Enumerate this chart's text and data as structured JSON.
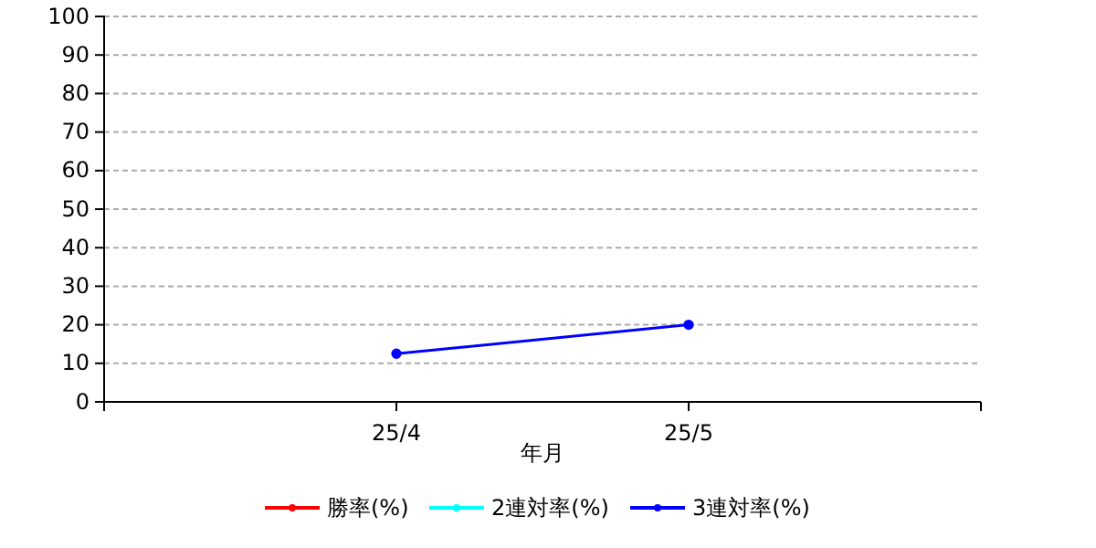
{
  "chart_data": {
    "type": "line",
    "xlabel": "年月",
    "categories": [
      null,
      "25/4",
      "25/5",
      null
    ],
    "series": [
      {
        "name": "勝率(%)",
        "color": "#ff0000",
        "values": [
          null,
          null,
          null,
          null
        ]
      },
      {
        "name": "2連対率(%)",
        "color": "#00ffff",
        "values": [
          null,
          null,
          null,
          null
        ]
      },
      {
        "name": "3連対率(%)",
        "color": "#0000ff",
        "values": [
          null,
          12.5,
          20,
          null
        ]
      }
    ],
    "ylim": [
      0,
      100
    ],
    "yticks": [
      0,
      10,
      20,
      30,
      40,
      50,
      60,
      70,
      80,
      90,
      100
    ],
    "grid": "y",
    "legend": "bottom",
    "marker": "circle",
    "line_style": "solid"
  }
}
